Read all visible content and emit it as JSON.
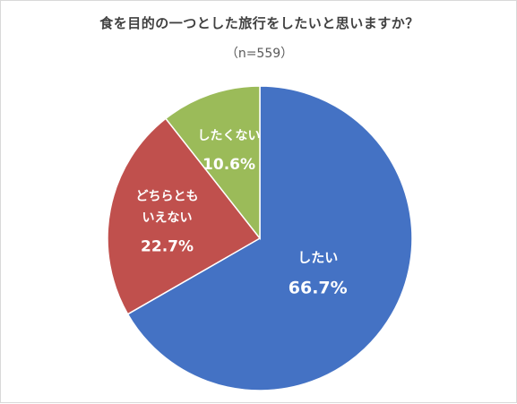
{
  "title": "食を目的の一つとした旅行をしたいと思いますか？",
  "subtitle": "（n=559）",
  "chart_data": {
    "type": "pie",
    "title": "食を目的の一つとした旅行をしたいと思いますか？",
    "subtitle": "（n=559）",
    "start_angle_deg": 0,
    "direction": "clockwise",
    "slices": [
      {
        "label_lines": [
          "したい"
        ],
        "value": 66.7,
        "value_label": "66.7%",
        "color": "#4472c4"
      },
      {
        "label_lines": [
          "どちらとも",
          "いえない"
        ],
        "value": 22.7,
        "value_label": "22.7%",
        "color": "#c0504d"
      },
      {
        "label_lines": [
          "したくない"
        ],
        "value": 10.6,
        "value_label": "10.6%",
        "color": "#9bbb59"
      }
    ]
  }
}
